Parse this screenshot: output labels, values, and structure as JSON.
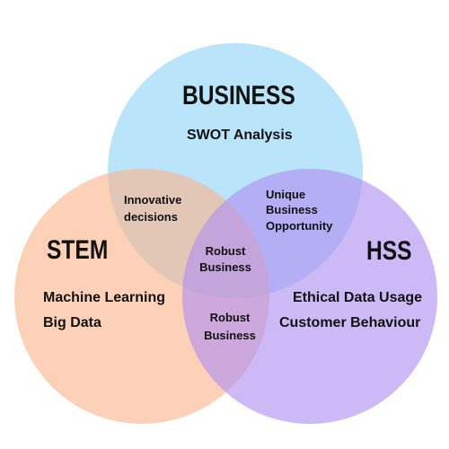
{
  "colors": {
    "business": "#8fd3f7",
    "stem": "#fbb48c",
    "hss": "#b08ef2"
  },
  "business": {
    "title": "BUSINESS",
    "subtitle": "SWOT  Analysis"
  },
  "stem": {
    "title": "STEM",
    "line1": "Machine Learning",
    "line2": "Big Data"
  },
  "hss": {
    "title": "HSS",
    "line1": "Ethical Data Usage",
    "line2": "Customer Behaviour"
  },
  "overlaps": {
    "business_stem": {
      "line1": "Innovative",
      "line2": "decisions"
    },
    "business_hss": {
      "line1": "Unique",
      "line2": "Business",
      "line3": "Opportunity"
    },
    "center": {
      "line1": "Robust",
      "line2": "Business"
    },
    "stem_hss": {
      "line1": "Robust",
      "line2": "Business"
    }
  }
}
